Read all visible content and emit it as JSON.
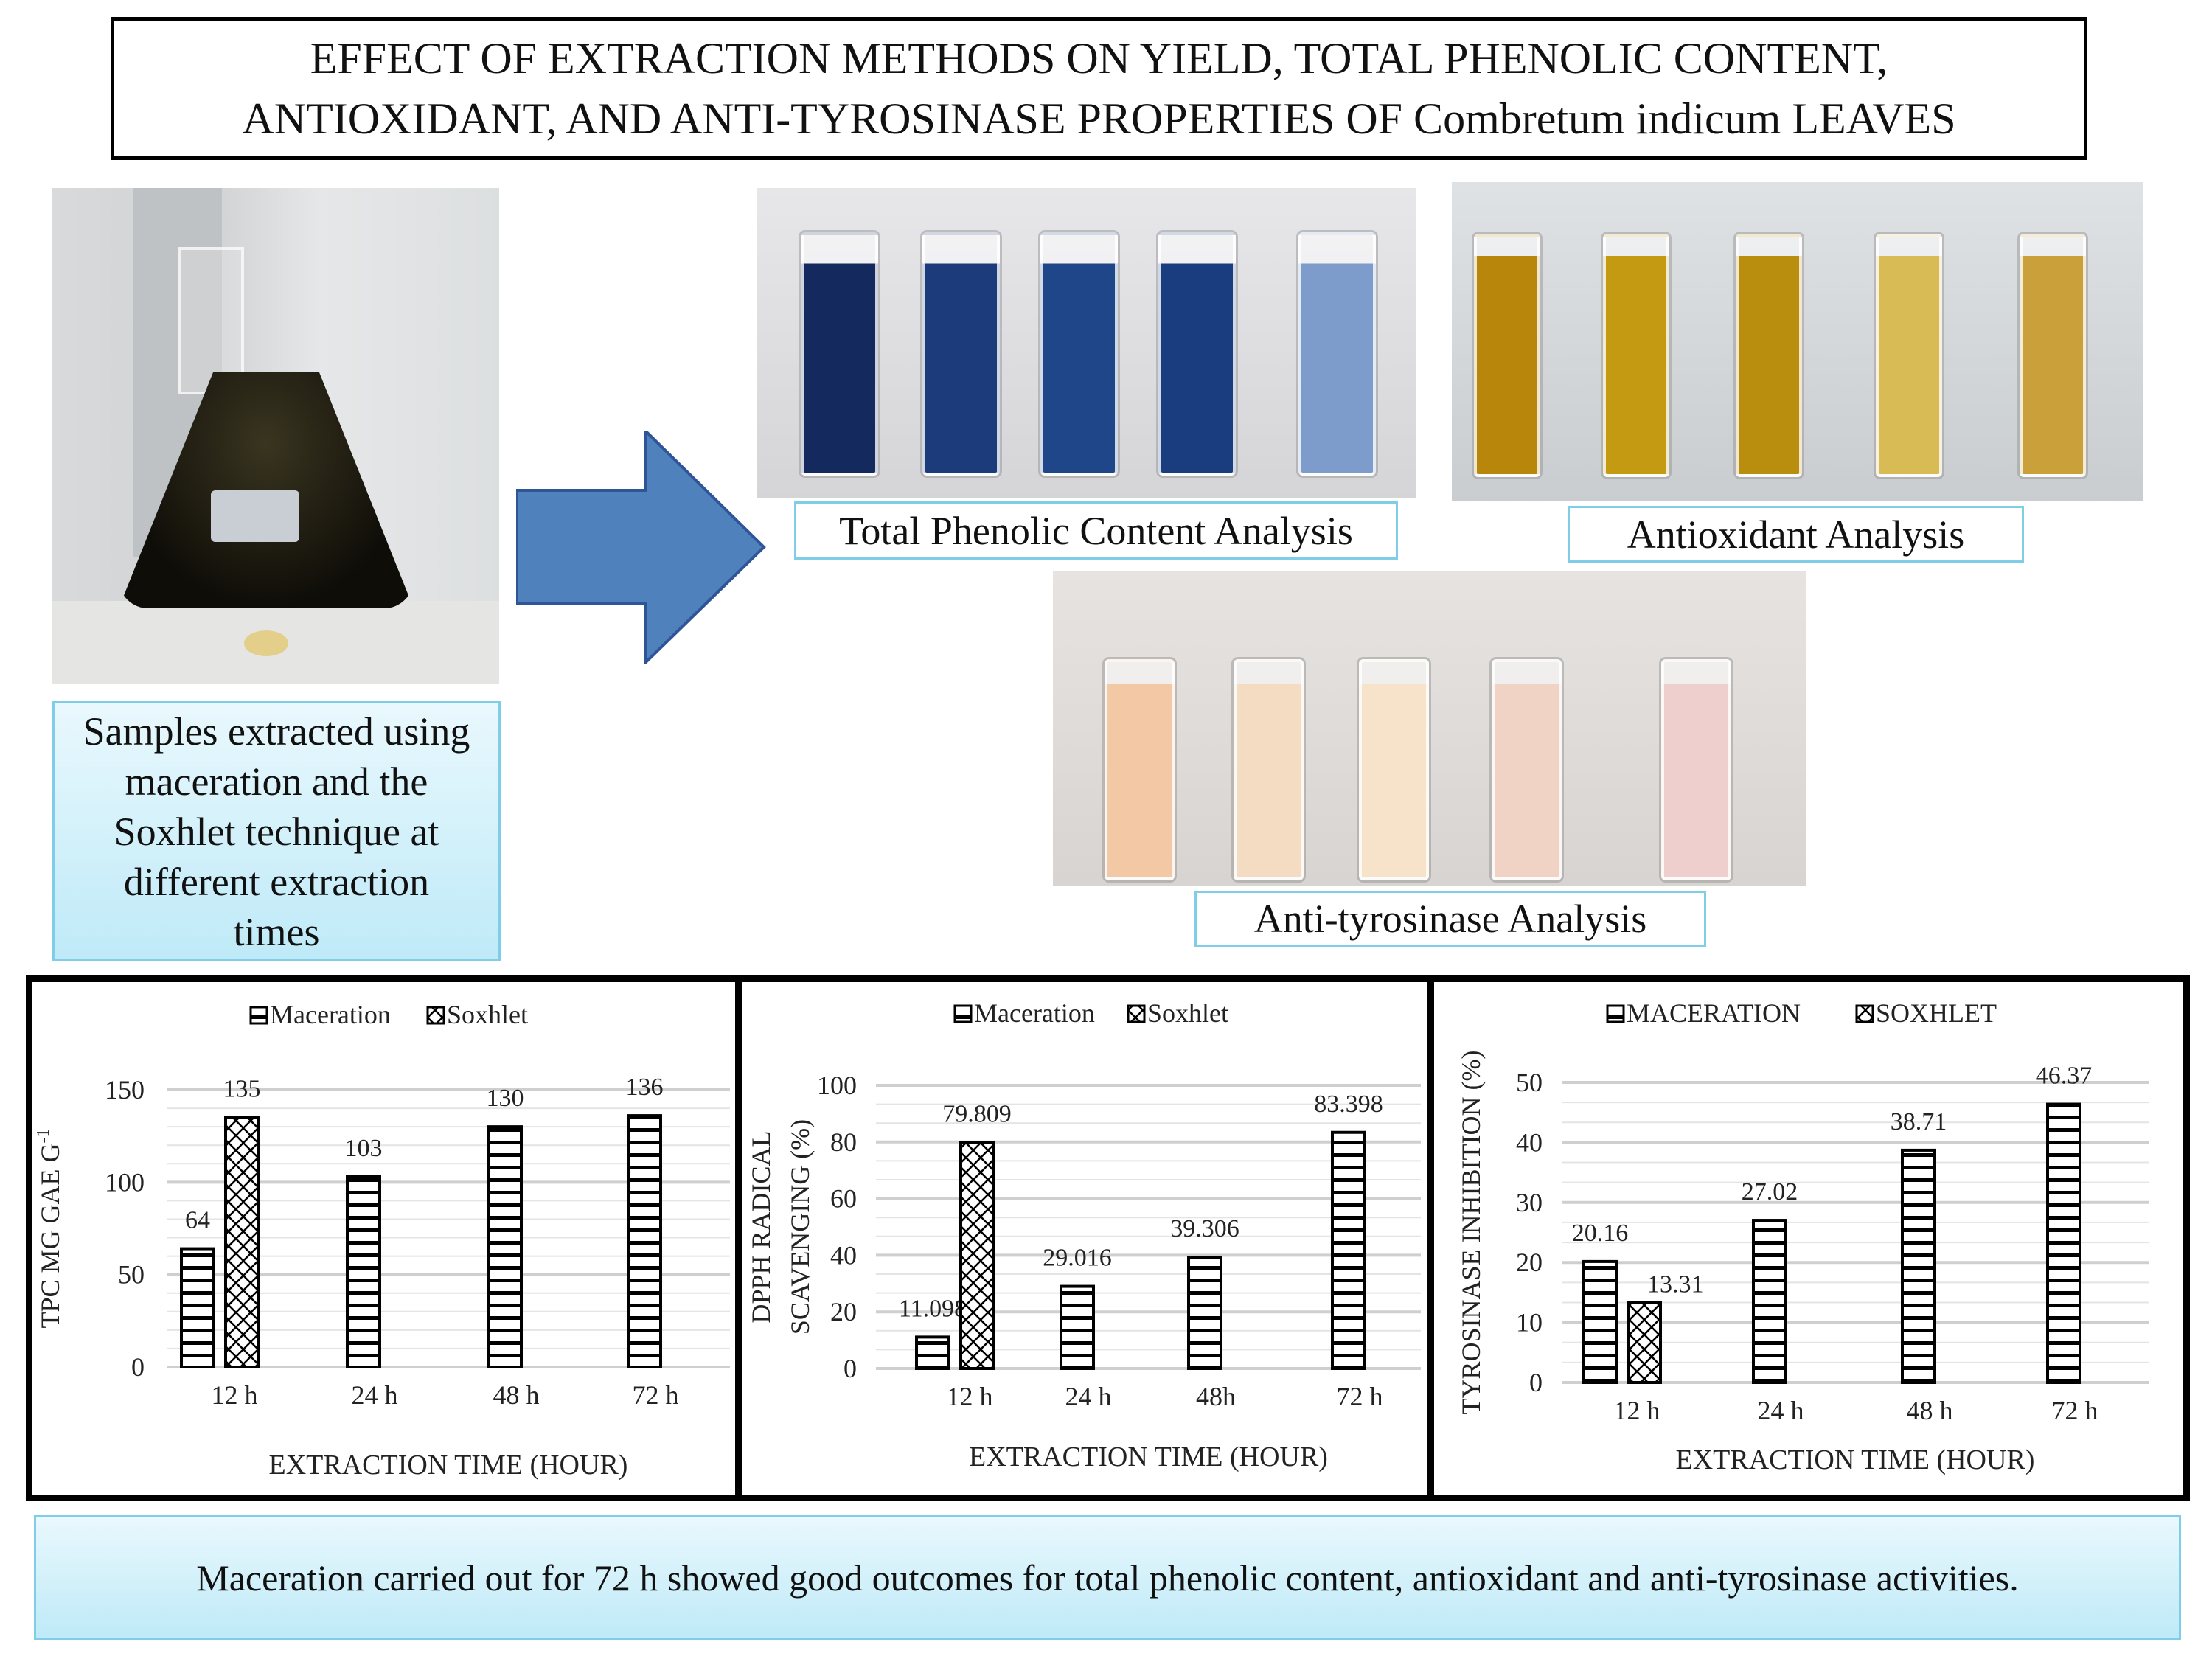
{
  "title": {
    "line1": "EFFECT OF EXTRACTION METHODS ON YIELD, TOTAL PHENOLIC CONTENT,",
    "line2": "ANTIOXIDANT, AND ANTI-TYROSINASE PROPERTIES OF Combretum indicum LEAVES"
  },
  "flask_caption": "Samples extracted using maceration and the Soxhlet technique at different extraction times",
  "labels": {
    "tpc": "Total Phenolic Content Analysis",
    "antioxidant": "Antioxidant Analysis",
    "antityrosinase": "Anti-tyrosinase Analysis"
  },
  "photo_colors": {
    "tpc": [
      "#14295e",
      "#1b3b7a",
      "#1f4688",
      "#1a3d80",
      "#7d9ccc"
    ],
    "antioxidant": [
      "#b8860b",
      "#c49a12",
      "#b98d0e",
      "#d9bb55",
      "#c9a03a"
    ],
    "antityrosinase": [
      "#f2c9a4",
      "#f4dcc2",
      "#f6e3c9",
      "#f1d3c6",
      "#efcfcd"
    ]
  },
  "conclusion": "Maceration carried out for 72 h showed good outcomes for total phenolic content, antioxidant and anti-tyrosinase activities.",
  "chart_data": [
    {
      "type": "bar",
      "legend": [
        "Maceration",
        "Soxhlet"
      ],
      "legend_placement": "top",
      "ylabel": "TPC MG GAE  G",
      "ylabel_sup": "-1",
      "xlabel": "EXTRACTION TIME (HOUR)",
      "categories": [
        "12 h",
        "24 h",
        "48 h",
        "72 h"
      ],
      "series": [
        {
          "name": "Maceration",
          "values": [
            64,
            103,
            130,
            136
          ],
          "labels": [
            "64",
            "103",
            "130",
            "136"
          ]
        },
        {
          "name": "Soxhlet",
          "values": [
            135,
            null,
            null,
            null
          ],
          "labels": [
            "135",
            null,
            null,
            null
          ]
        }
      ],
      "ylim": [
        0,
        150
      ],
      "yticks": [
        "0",
        "50",
        "100",
        "150"
      ],
      "ytick_values": [
        0,
        50,
        100,
        150
      ]
    },
    {
      "type": "bar",
      "legend": [
        "Maceration",
        "Soxhlet"
      ],
      "legend_placement": "top",
      "ylabel": "DPPH RADICAL",
      "ylabel2": "SCAVENGING (%)",
      "xlabel": "EXTRACTION TIME (HOUR)",
      "categories": [
        "12 h",
        "24 h",
        "48h",
        "72 h"
      ],
      "series": [
        {
          "name": "Maceration",
          "values": [
            11.098,
            29.016,
            39.306,
            83.398
          ],
          "labels": [
            "11.098",
            "29.016",
            "39.306",
            "83.398"
          ]
        },
        {
          "name": "Soxhlet",
          "values": [
            79.809,
            null,
            null,
            null
          ],
          "labels": [
            "79.809",
            null,
            null,
            null
          ]
        }
      ],
      "ylim": [
        0,
        100
      ],
      "yticks": [
        "0",
        "20",
        "40",
        "60",
        "80",
        "100"
      ],
      "ytick_values": [
        0,
        20,
        40,
        60,
        80,
        100
      ]
    },
    {
      "type": "bar",
      "legend": [
        "MACERATION",
        "SOXHLET"
      ],
      "legend_placement": "top",
      "ylabel": "TYROSINASE INHIBITION (%)",
      "xlabel": "EXTRACTION TIME (HOUR)",
      "categories": [
        "12 h",
        "24 h",
        "48 h",
        "72 h"
      ],
      "series": [
        {
          "name": "MACERATION",
          "values": [
            20.16,
            27.02,
            38.71,
            46.37
          ],
          "labels": [
            "20.16",
            "27.02",
            "38.71",
            "46.37"
          ]
        },
        {
          "name": "SOXHLET",
          "values": [
            13.31,
            null,
            null,
            null
          ],
          "labels": [
            "13.31",
            null,
            null,
            null
          ]
        }
      ],
      "ylim": [
        0,
        50
      ],
      "yticks": [
        "0",
        "10",
        "20",
        "30",
        "40",
        "50"
      ],
      "ytick_values": [
        0,
        10,
        20,
        30,
        40,
        50
      ]
    }
  ]
}
